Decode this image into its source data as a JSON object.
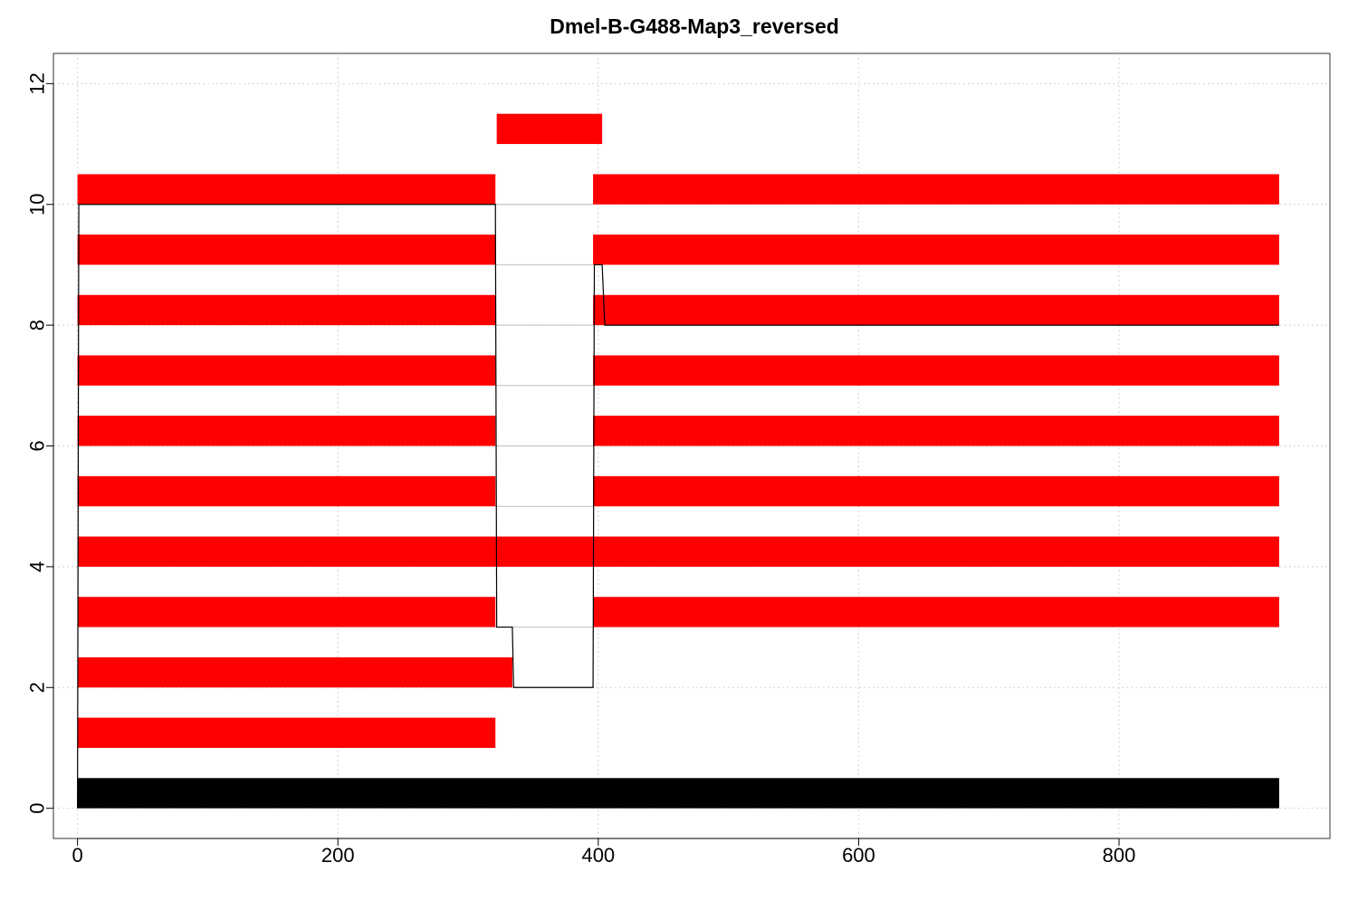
{
  "chart_data": {
    "type": "bar",
    "title": "Dmel-B-G488-Map3_reversed",
    "xlabel": "",
    "ylabel": "",
    "xlim": [
      -18.5,
      962
    ],
    "ylim": [
      -0.5,
      12.5
    ],
    "x_ticks": [
      0,
      200,
      400,
      600,
      800
    ],
    "x_tick_labels": [
      "0",
      "200",
      "400",
      "600",
      "800"
    ],
    "y_ticks": [
      0,
      2,
      4,
      6,
      8,
      10,
      12
    ],
    "y_tick_labels": [
      "0",
      "2",
      "4",
      "6",
      "8",
      "10",
      "12"
    ],
    "grid": true,
    "legend": "none",
    "colors": {
      "read": "#ff0000",
      "reference": "#000000",
      "gap_line": "#bebebe",
      "coverage_line": "#000000",
      "grid": "#d3d3d3"
    },
    "reference": {
      "y": 0,
      "start": 0,
      "end": 923
    },
    "reads": [
      {
        "y": 1,
        "segments": [
          [
            0,
            321
          ]
        ]
      },
      {
        "y": 2,
        "segments": [
          [
            0,
            334
          ]
        ]
      },
      {
        "y": 3,
        "segments": [
          [
            0,
            321
          ],
          [
            396,
            923
          ]
        ]
      },
      {
        "y": 4,
        "segments": [
          [
            0,
            923
          ]
        ]
      },
      {
        "y": 5,
        "segments": [
          [
            0,
            321
          ],
          [
            396,
            923
          ]
        ]
      },
      {
        "y": 6,
        "segments": [
          [
            0,
            321
          ],
          [
            396,
            923
          ]
        ]
      },
      {
        "y": 7,
        "segments": [
          [
            0,
            321
          ],
          [
            396,
            923
          ]
        ]
      },
      {
        "y": 8,
        "segments": [
          [
            0,
            321
          ],
          [
            396,
            923
          ]
        ]
      },
      {
        "y": 9,
        "segments": [
          [
            0,
            321
          ],
          [
            396,
            923
          ]
        ]
      },
      {
        "y": 10,
        "segments": [
          [
            0,
            321
          ],
          [
            396,
            923
          ]
        ]
      },
      {
        "y": 11,
        "segments": [
          [
            322,
            403
          ]
        ]
      }
    ],
    "coverage_line": [
      [
        0,
        0
      ],
      [
        1,
        10
      ],
      [
        321,
        10
      ],
      [
        322,
        3
      ],
      [
        334,
        3
      ],
      [
        335,
        2
      ],
      [
        396,
        2
      ],
      [
        397,
        9
      ],
      [
        403,
        9
      ],
      [
        405,
        8
      ],
      [
        923,
        8
      ]
    ]
  }
}
